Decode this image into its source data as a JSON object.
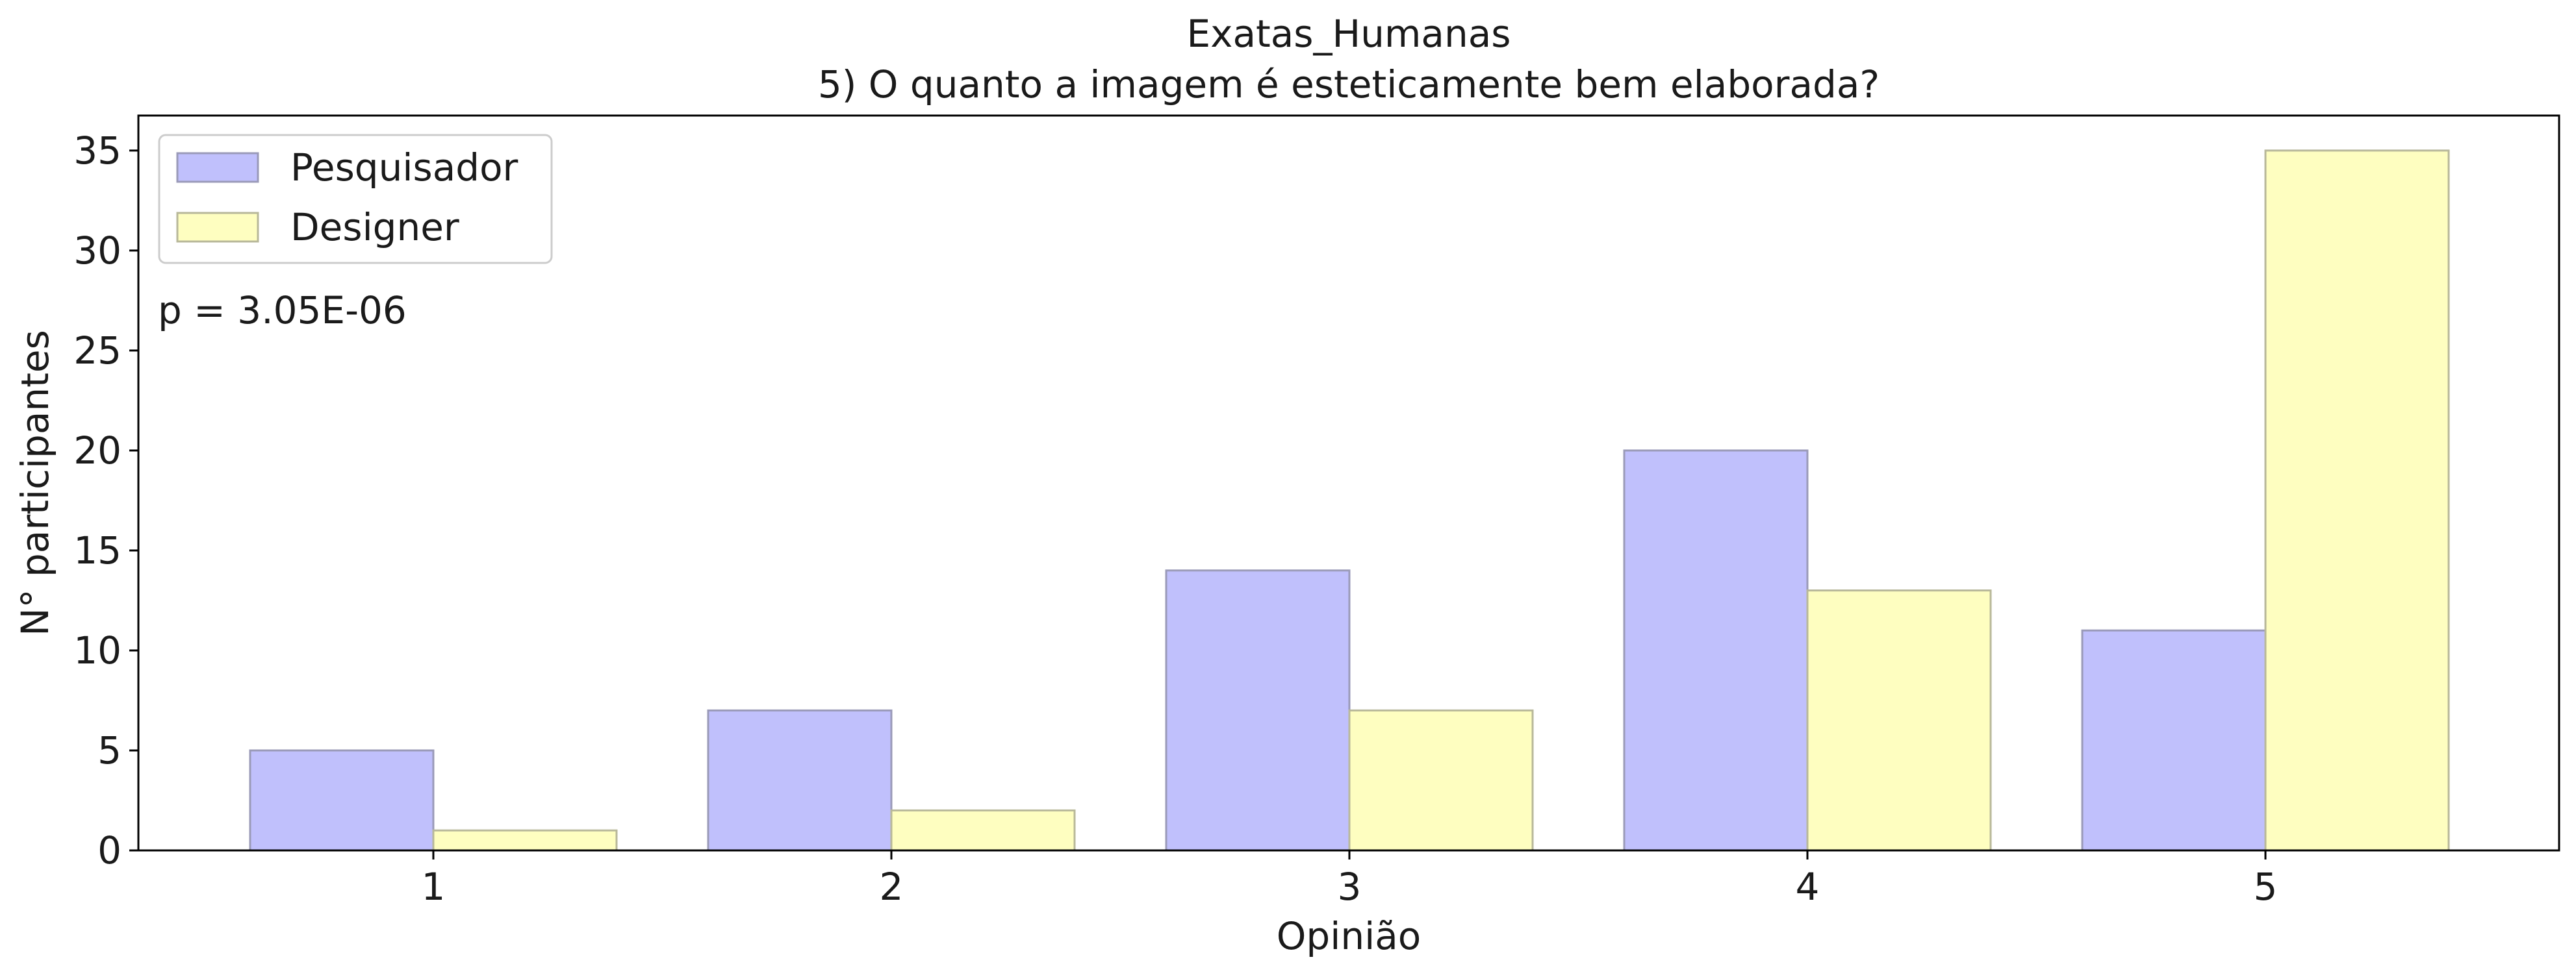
{
  "chart_data": {
    "type": "bar",
    "title_line1": "Exatas_Humanas",
    "title_line2": "5) O quanto a imagem é esteticamente bem elaborada?",
    "xlabel": "Opinião",
    "ylabel": "N° participantes",
    "categories": [
      "1",
      "2",
      "3",
      "4",
      "5"
    ],
    "series": [
      {
        "name": "Pesquisador",
        "values": [
          5,
          7,
          14,
          20,
          11
        ],
        "color": "#c0c0fc",
        "edge": "#9a9ab8"
      },
      {
        "name": "Designer",
        "values": [
          1,
          2,
          7,
          13,
          35
        ],
        "color": "#fefec0",
        "edge": "#b8b89a"
      }
    ],
    "ylim": [
      0,
      36.75
    ],
    "yticks": [
      0,
      5,
      10,
      15,
      20,
      25,
      30,
      35
    ],
    "annotation": "p = 3.05E-06",
    "legend_position": "top-left",
    "grid": false
  }
}
